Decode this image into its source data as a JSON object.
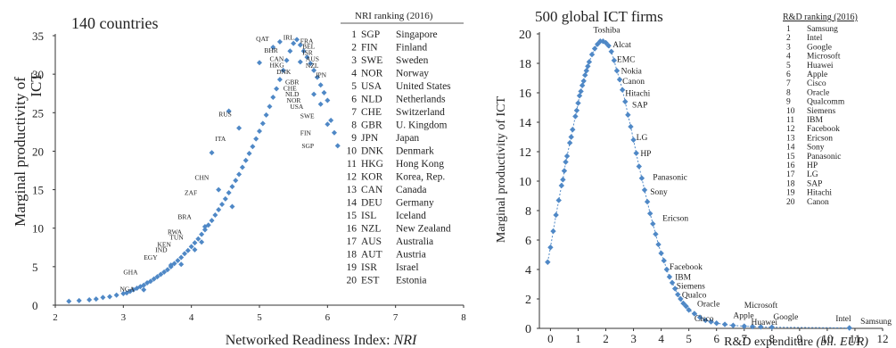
{
  "chart_data": [
    {
      "type": "scatter",
      "title": "140 countries",
      "xlabel_prefix": "Networked Readiness Index: ",
      "xlabel_var": "NRI",
      "ylabel_line1": "Marginal productivity of",
      "ylabel_line2": "ICT",
      "xlim": [
        2,
        8
      ],
      "ylim": [
        0,
        35
      ],
      "xticks": [
        "2",
        "3",
        "4",
        "5",
        "6",
        "7",
        "8"
      ],
      "yticks": [
        "0",
        "5",
        "10",
        "15",
        "20",
        "25",
        "30",
        "35"
      ],
      "marker_color": "#4f88c6",
      "points": [
        [
          2.2,
          0.5
        ],
        [
          2.35,
          0.6
        ],
        [
          2.5,
          0.7
        ],
        [
          2.6,
          0.8
        ],
        [
          2.7,
          1.0
        ],
        [
          2.8,
          1.1
        ],
        [
          2.9,
          1.3
        ],
        [
          3.0,
          1.5
        ],
        [
          3.05,
          1.6
        ],
        [
          3.1,
          1.8
        ],
        [
          3.15,
          2.0
        ],
        [
          3.2,
          2.2
        ],
        [
          3.25,
          2.4
        ],
        [
          3.3,
          2.6
        ],
        [
          3.35,
          2.9
        ],
        [
          3.4,
          3.1
        ],
        [
          3.45,
          3.4
        ],
        [
          3.5,
          3.7
        ],
        [
          3.55,
          4.0
        ],
        [
          3.6,
          4.3
        ],
        [
          3.65,
          4.6
        ],
        [
          3.7,
          5.0
        ],
        [
          3.75,
          5.4
        ],
        [
          3.8,
          5.8
        ],
        [
          3.85,
          6.2
        ],
        [
          3.9,
          6.7
        ],
        [
          3.95,
          7.1
        ],
        [
          4.0,
          7.6
        ],
        [
          4.05,
          8.1
        ],
        [
          4.1,
          8.6
        ],
        [
          4.15,
          9.2
        ],
        [
          4.2,
          9.8
        ],
        [
          4.25,
          10.4
        ],
        [
          4.3,
          11.0
        ],
        [
          4.35,
          11.7
        ],
        [
          4.4,
          12.4
        ],
        [
          4.45,
          13.1
        ],
        [
          4.5,
          13.8
        ],
        [
          4.55,
          14.6
        ],
        [
          4.6,
          15.4
        ],
        [
          4.65,
          16.2
        ],
        [
          4.7,
          17.0
        ],
        [
          4.75,
          17.9
        ],
        [
          4.8,
          18.8
        ],
        [
          4.85,
          19.7
        ],
        [
          4.9,
          20.6
        ],
        [
          4.95,
          21.6
        ],
        [
          5.0,
          22.6
        ],
        [
          5.05,
          23.6
        ],
        [
          5.1,
          24.7
        ],
        [
          5.15,
          25.8
        ],
        [
          5.2,
          27.0
        ],
        [
          5.25,
          28.1
        ],
        [
          5.3,
          29.3
        ],
        [
          5.35,
          30.5
        ],
        [
          5.4,
          31.8
        ],
        [
          5.45,
          33.0
        ],
        [
          5.5,
          34.0
        ],
        [
          5.55,
          34.5
        ],
        [
          5.3,
          34.2
        ],
        [
          5.2,
          33.5
        ],
        [
          5.6,
          33.8
        ],
        [
          5.65,
          33.0
        ],
        [
          5.7,
          32.2
        ],
        [
          5.75,
          31.4
        ],
        [
          5.8,
          30.5
        ],
        [
          5.85,
          29.6
        ],
        [
          5.9,
          28.6
        ],
        [
          5.95,
          27.6
        ],
        [
          6.0,
          26.6
        ],
        [
          6.05,
          24.0
        ],
        [
          6.1,
          22.4
        ],
        [
          6.15,
          20.7
        ],
        [
          4.55,
          25.2
        ],
        [
          4.3,
          19.8
        ],
        [
          4.6,
          12.8
        ],
        [
          5.0,
          31.5
        ],
        [
          4.7,
          23.0
        ],
        [
          3.7,
          5.2
        ],
        [
          4.2,
          10.2
        ],
        [
          4.4,
          15.0
        ],
        [
          4.05,
          7.2
        ],
        [
          3.85,
          5.3
        ],
        [
          3.3,
          2.0
        ],
        [
          4.15,
          8.2
        ],
        [
          5.6,
          31.6
        ],
        [
          5.8,
          27.4
        ],
        [
          6.0,
          23.5
        ],
        [
          5.9,
          26.1
        ]
      ],
      "labels": [
        {
          "text": "QAT",
          "x": 4.95,
          "y": 34.3
        },
        {
          "text": "IRL",
          "x": 5.35,
          "y": 34.5
        },
        {
          "text": "FRA",
          "x": 5.6,
          "y": 34.0
        },
        {
          "text": "BEL",
          "x": 5.63,
          "y": 33.3
        },
        {
          "text": "ISR",
          "x": 5.63,
          "y": 32.5
        },
        {
          "text": "AUS",
          "x": 5.68,
          "y": 31.7
        },
        {
          "text": "NZL",
          "x": 5.68,
          "y": 30.8
        },
        {
          "text": "JPN",
          "x": 5.82,
          "y": 29.6
        },
        {
          "text": "BHR",
          "x": 5.07,
          "y": 32.8
        },
        {
          "text": "CAN",
          "x": 5.15,
          "y": 31.7
        },
        {
          "text": "HKG",
          "x": 5.15,
          "y": 30.9
        },
        {
          "text": "DNK",
          "x": 5.25,
          "y": 30.0
        },
        {
          "text": "GBR",
          "x": 5.38,
          "y": 28.7
        },
        {
          "text": "CHE",
          "x": 5.35,
          "y": 27.9
        },
        {
          "text": "NLD",
          "x": 5.38,
          "y": 27.1
        },
        {
          "text": "NOR",
          "x": 5.4,
          "y": 26.3
        },
        {
          "text": "USA",
          "x": 5.45,
          "y": 25.5
        },
        {
          "text": "SWE",
          "x": 5.6,
          "y": 24.3
        },
        {
          "text": "FIN",
          "x": 5.6,
          "y": 22.1
        },
        {
          "text": "SGP",
          "x": 5.62,
          "y": 20.4
        },
        {
          "text": "RUS",
          "x": 4.4,
          "y": 24.5
        },
        {
          "text": "ITA",
          "x": 4.35,
          "y": 21.3
        },
        {
          "text": "CHN",
          "x": 4.05,
          "y": 16.3
        },
        {
          "text": "ZAF",
          "x": 3.9,
          "y": 14.3
        },
        {
          "text": "BRA",
          "x": 3.8,
          "y": 11.2
        },
        {
          "text": "RWA",
          "x": 3.65,
          "y": 9.2
        },
        {
          "text": "TUN",
          "x": 3.68,
          "y": 8.5
        },
        {
          "text": "KEN",
          "x": 3.5,
          "y": 7.6
        },
        {
          "text": "IND",
          "x": 3.47,
          "y": 6.9
        },
        {
          "text": "EGY",
          "x": 3.3,
          "y": 5.9
        },
        {
          "text": "GHA",
          "x": 3.0,
          "y": 4.0
        },
        {
          "text": "NGA",
          "x": 2.95,
          "y": 1.8
        }
      ],
      "ranking_title": "NRI ranking (2016)",
      "ranking": [
        {
          "rank": "1",
          "code": "SGP",
          "name": "Singapore"
        },
        {
          "rank": "2",
          "code": "FIN",
          "name": "Finland"
        },
        {
          "rank": "3",
          "code": "SWE",
          "name": "Sweden"
        },
        {
          "rank": "4",
          "code": "NOR",
          "name": "Norway"
        },
        {
          "rank": "5",
          "code": "USA",
          "name": "United States"
        },
        {
          "rank": "6",
          "code": "NLD",
          "name": "Netherlands"
        },
        {
          "rank": "7",
          "code": "CHE",
          "name": "Switzerland"
        },
        {
          "rank": "8",
          "code": "GBR",
          "name": "U. Kingdom"
        },
        {
          "rank": "9",
          "code": "JPN",
          "name": "Japan"
        },
        {
          "rank": "10",
          "code": "DNK",
          "name": "Denmark"
        },
        {
          "rank": "11",
          "code": "HKG",
          "name": "Hong Kong"
        },
        {
          "rank": "12",
          "code": "KOR",
          "name": "Korea, Rep."
        },
        {
          "rank": "13",
          "code": "CAN",
          "name": "Canada"
        },
        {
          "rank": "14",
          "code": "DEU",
          "name": "Germany"
        },
        {
          "rank": "15",
          "code": "ISL",
          "name": "Iceland"
        },
        {
          "rank": "16",
          "code": "NZL",
          "name": "New Zealand"
        },
        {
          "rank": "17",
          "code": "AUS",
          "name": "Australia"
        },
        {
          "rank": "18",
          "code": "AUT",
          "name": "Austria"
        },
        {
          "rank": "19",
          "code": "ISR",
          "name": "Israel"
        },
        {
          "rank": "20",
          "code": "EST",
          "name": "Estonia"
        }
      ]
    },
    {
      "type": "line",
      "title": "500 global ICT firms",
      "xlabel_prefix": "R&D expenditure ",
      "xlabel_var": "(bil. EUR)",
      "ylabel": "Marginal productivity of ICT",
      "xlim": [
        -0.4,
        12
      ],
      "ylim": [
        0,
        20
      ],
      "xticks": [
        "0",
        "1",
        "2",
        "3",
        "4",
        "5",
        "6",
        "7",
        "8",
        "9",
        "10",
        "11",
        "12"
      ],
      "yticks": [
        "0",
        "2",
        "4",
        "6",
        "8",
        "10",
        "12",
        "14",
        "16",
        "18",
        "20"
      ],
      "marker_color": "#4f88c6",
      "points": [
        [
          -0.1,
          4.5
        ],
        [
          0.0,
          5.5
        ],
        [
          0.1,
          6.6
        ],
        [
          0.2,
          7.7
        ],
        [
          0.3,
          8.7
        ],
        [
          0.4,
          9.7
        ],
        [
          0.5,
          10.7
        ],
        [
          0.6,
          11.7
        ],
        [
          0.7,
          12.6
        ],
        [
          0.8,
          13.5
        ],
        [
          0.9,
          14.4
        ],
        [
          1.0,
          15.3
        ],
        [
          1.1,
          16.1
        ],
        [
          1.2,
          16.8
        ],
        [
          1.3,
          17.5
        ],
        [
          1.4,
          18.1
        ],
        [
          1.5,
          18.6
        ],
        [
          1.6,
          19.0
        ],
        [
          1.7,
          19.3
        ],
        [
          1.8,
          19.5
        ],
        [
          1.9,
          19.5
        ],
        [
          2.0,
          19.4
        ],
        [
          2.1,
          19.2
        ],
        [
          2.2,
          18.8
        ],
        [
          2.3,
          18.2
        ],
        [
          2.4,
          17.5
        ],
        [
          2.5,
          16.9
        ],
        [
          2.6,
          16.2
        ],
        [
          2.7,
          15.4
        ],
        [
          2.8,
          14.5
        ],
        [
          2.9,
          13.7
        ],
        [
          3.0,
          12.8
        ],
        [
          3.1,
          11.9
        ],
        [
          3.2,
          11.0
        ],
        [
          3.3,
          10.2
        ],
        [
          3.4,
          9.4
        ],
        [
          3.5,
          8.6
        ],
        [
          3.6,
          7.8
        ],
        [
          3.7,
          7.1
        ],
        [
          3.8,
          6.4
        ],
        [
          3.9,
          5.7
        ],
        [
          4.0,
          5.1
        ],
        [
          4.1,
          4.6
        ],
        [
          4.2,
          4.0
        ],
        [
          4.3,
          3.5
        ],
        [
          4.4,
          3.1
        ],
        [
          4.5,
          2.7
        ],
        [
          4.6,
          2.3
        ],
        [
          4.7,
          2.0
        ],
        [
          4.8,
          1.7
        ],
        [
          4.9,
          1.5
        ],
        [
          5.0,
          1.25
        ],
        [
          5.2,
          1.0
        ],
        [
          5.4,
          0.75
        ],
        [
          5.6,
          0.55
        ],
        [
          5.8,
          0.45
        ],
        [
          6.0,
          0.35
        ],
        [
          6.3,
          0.27
        ],
        [
          6.6,
          0.2
        ],
        [
          7.0,
          0.15
        ],
        [
          7.3,
          0.12
        ],
        [
          7.6,
          0.1
        ],
        [
          8.0,
          0.08
        ],
        [
          10.8,
          0.03
        ],
        [
          0.45,
          10.1
        ],
        [
          0.55,
          11.3
        ],
        [
          0.75,
          13.0
        ],
        [
          0.95,
          14.8
        ],
        [
          1.05,
          15.8
        ],
        [
          1.15,
          16.5
        ],
        [
          1.25,
          17.2
        ],
        [
          1.35,
          17.8
        ]
      ],
      "labels": [
        {
          "text": "Toshiba",
          "x": 1.55,
          "y": 20.1
        },
        {
          "text": "Alcat",
          "x": 2.25,
          "y": 19.1
        },
        {
          "text": "EMC",
          "x": 2.4,
          "y": 18.1
        },
        {
          "text": "Nokia",
          "x": 2.55,
          "y": 17.3
        },
        {
          "text": "Canon",
          "x": 2.6,
          "y": 16.6
        },
        {
          "text": "Hitachi",
          "x": 2.7,
          "y": 15.8
        },
        {
          "text": "SAP",
          "x": 2.95,
          "y": 15.0
        },
        {
          "text": "LG",
          "x": 3.1,
          "y": 12.8
        },
        {
          "text": "HP",
          "x": 3.25,
          "y": 11.7
        },
        {
          "text": "Panasonic",
          "x": 3.7,
          "y": 10.1
        },
        {
          "text": "Sony",
          "x": 3.6,
          "y": 9.1
        },
        {
          "text": "Ericson",
          "x": 4.05,
          "y": 7.3
        },
        {
          "text": "Facebook",
          "x": 4.3,
          "y": 4.0
        },
        {
          "text": "IBM",
          "x": 4.5,
          "y": 3.3
        },
        {
          "text": "Siemens",
          "x": 4.55,
          "y": 2.7
        },
        {
          "text": "Qualco",
          "x": 4.75,
          "y": 2.1
        },
        {
          "text": "Oracle",
          "x": 5.3,
          "y": 1.5
        },
        {
          "text": "Cisco",
          "x": 5.2,
          "y": 0.5
        },
        {
          "text": "Microsoft",
          "x": 7.0,
          "y": 1.4
        },
        {
          "text": "Apple",
          "x": 6.6,
          "y": 0.7
        },
        {
          "text": "Huawei",
          "x": 7.25,
          "y": 0.25
        },
        {
          "text": "Google",
          "x": 8.05,
          "y": 0.6
        },
        {
          "text": "Intel",
          "x": 10.3,
          "y": 0.5
        },
        {
          "text": "Samsung",
          "x": 11.2,
          "y": 0.3
        }
      ],
      "ranking_title": "R&D ranking (2016)",
      "ranking": [
        {
          "rank": "1",
          "name": "Samsung"
        },
        {
          "rank": "2",
          "name": "Intel"
        },
        {
          "rank": "3",
          "name": "Google"
        },
        {
          "rank": "4",
          "name": "Microsoft"
        },
        {
          "rank": "5",
          "name": "Huawei"
        },
        {
          "rank": "6",
          "name": "Apple"
        },
        {
          "rank": "7",
          "name": "Cisco"
        },
        {
          "rank": "8",
          "name": "Oracle"
        },
        {
          "rank": "9",
          "name": "Qualcomm"
        },
        {
          "rank": "10",
          "name": "Siemens"
        },
        {
          "rank": "11",
          "name": "IBM"
        },
        {
          "rank": "12",
          "name": "Facebook"
        },
        {
          "rank": "13",
          "name": "Ericson"
        },
        {
          "rank": "14",
          "name": "Sony"
        },
        {
          "rank": "15",
          "name": "Panasonic"
        },
        {
          "rank": "16",
          "name": "HP"
        },
        {
          "rank": "17",
          "name": "LG"
        },
        {
          "rank": "18",
          "name": "SAP"
        },
        {
          "rank": "19",
          "name": "Hitachi"
        },
        {
          "rank": "20",
          "name": "Canon"
        }
      ]
    }
  ]
}
